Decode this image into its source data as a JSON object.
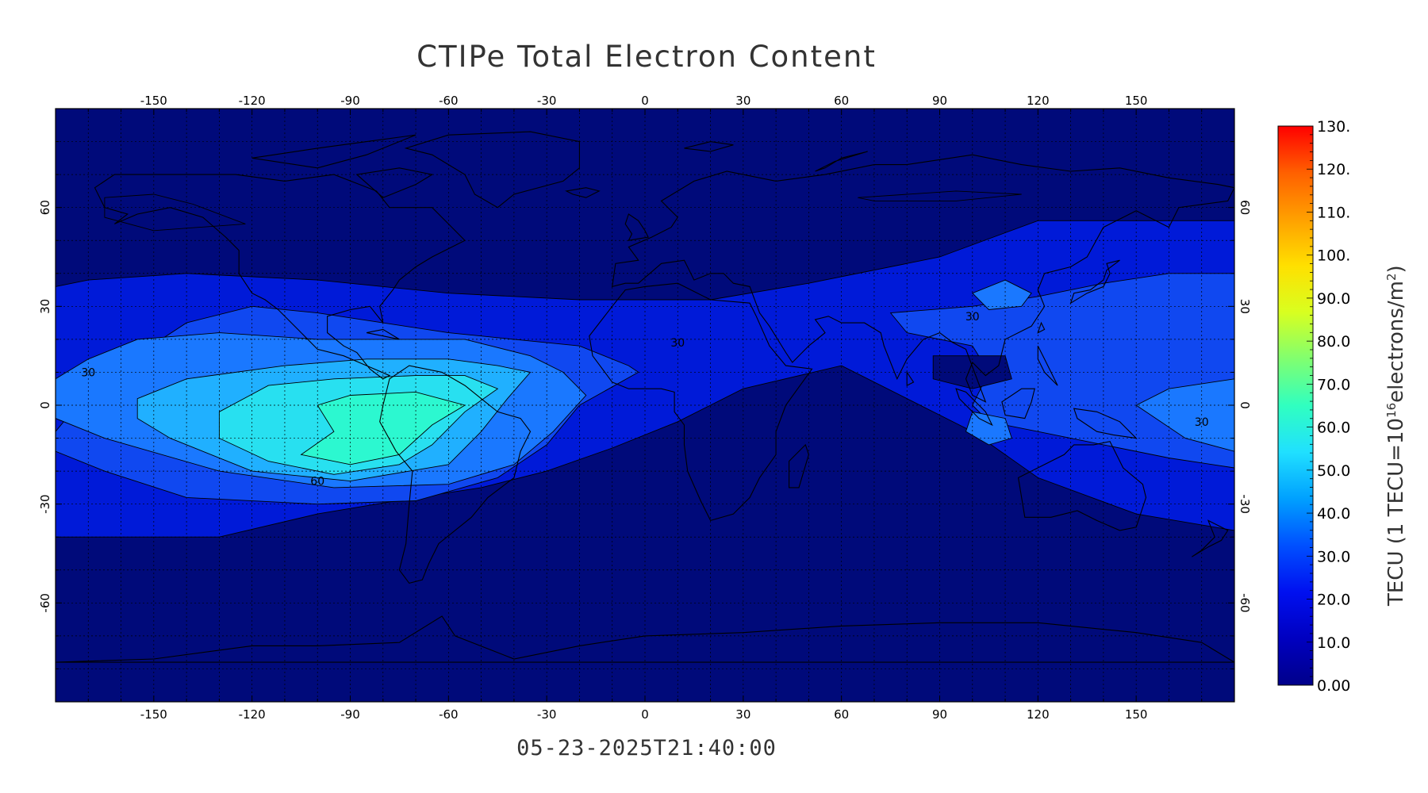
{
  "title": "CTIPe Total Electron Content",
  "timestamp": "05-23-2025T21:40:00",
  "colorbar": {
    "title": "TECU (1 TECU=10",
    "title_exp": "16",
    "title_mid": "electrons/m",
    "title_exp2": "2",
    "title_end": ")",
    "labels": [
      "130.",
      "120.",
      "110.",
      "100.",
      "90.0",
      "80.0",
      "70.0",
      "60.0",
      "50.0",
      "40.0",
      "30.0",
      "20.0",
      "10.0",
      "0.00"
    ],
    "colors": [
      "#ff0000",
      "#ff6000",
      "#ffa000",
      "#ffe000",
      "#d8ff20",
      "#80ff70",
      "#30ffc0",
      "#20e0ff",
      "#00a0ff",
      "#0050ff",
      "#0010f0",
      "#0000c0",
      "#00008a"
    ]
  },
  "axes": {
    "lon_ticks": [
      "-150",
      "-120",
      "-90",
      "-60",
      "-30",
      "0",
      "30",
      "60",
      "90",
      "120",
      "150"
    ],
    "lat_ticks": [
      "60",
      "30",
      "0",
      "-30",
      "-60"
    ],
    "lon_range": [
      -180,
      180
    ],
    "lat_range": [
      -90,
      90
    ]
  },
  "contour_labels": [
    {
      "text": "30",
      "lon": -170,
      "lat": 10
    },
    {
      "text": "30",
      "lon": 10,
      "lat": 19
    },
    {
      "text": "30",
      "lon": 100,
      "lat": 27
    },
    {
      "text": "30",
      "lon": 170,
      "lat": -5
    },
    {
      "text": "60",
      "lon": -100,
      "lat": -23
    }
  ],
  "colors": {
    "level_0_10": "#000a7a",
    "level_10_20": "#001ad8",
    "level_20_30": "#1048f0",
    "level_30_40": "#1a78ff",
    "level_40_50": "#20b0ff",
    "level_50_60": "#28e0f0",
    "level_60_70": "#2cf8d0"
  }
}
